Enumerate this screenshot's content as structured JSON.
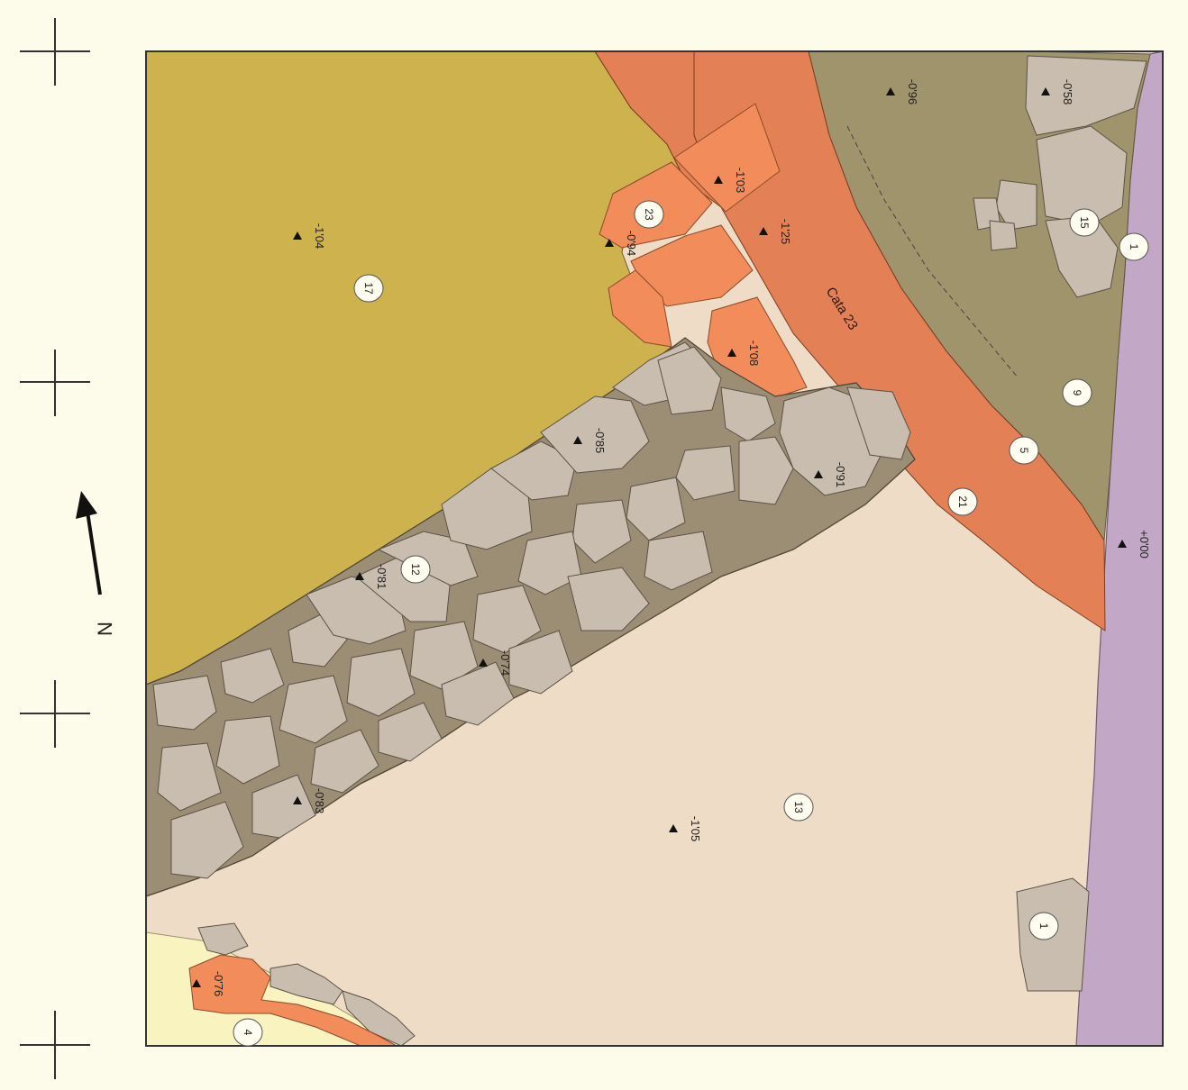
{
  "north_arrow": {
    "label": "N"
  },
  "colors": {
    "page": "#fdfbe9",
    "frame": "#333333",
    "ue17_olive_yellow": "#cdb24e",
    "ue13_sand": "#efdcc6",
    "ue1_lilac": "#c2a8c6",
    "ue9_olive_brown": "#9f946c",
    "ue21_terracotta": "#e38055",
    "ue23_orange": "#f28c5a",
    "wall_stones": "#c9bdb0",
    "wall_mortar": "#9c8e74",
    "ue4_pale_yellow": "#f9f3c0"
  },
  "strata": {
    "ue17": "17",
    "ue13": "13",
    "ue12": "12",
    "ue9": "9",
    "ue5": "5",
    "ue21": "21",
    "ue1_top": "1",
    "ue1_bottom": "1",
    "ue15": "15",
    "ue23": "23",
    "ue4": "4",
    "cata": "Cata 23"
  },
  "elevations": {
    "e_104": "-1'04",
    "e_105": "-1'05",
    "e_074": "-0'74",
    "e_083": "-0'83",
    "e_081": "-0'81",
    "e_085": "-0'85",
    "e_091": "-0'91",
    "e_096": "-0'96",
    "e_058": "-0'58",
    "e_103": "-1'03",
    "e_125": "-1'25",
    "e_094": "-0'94",
    "e_108": "-1'08",
    "e_000": "+0'00",
    "e_076": "-0'76"
  }
}
